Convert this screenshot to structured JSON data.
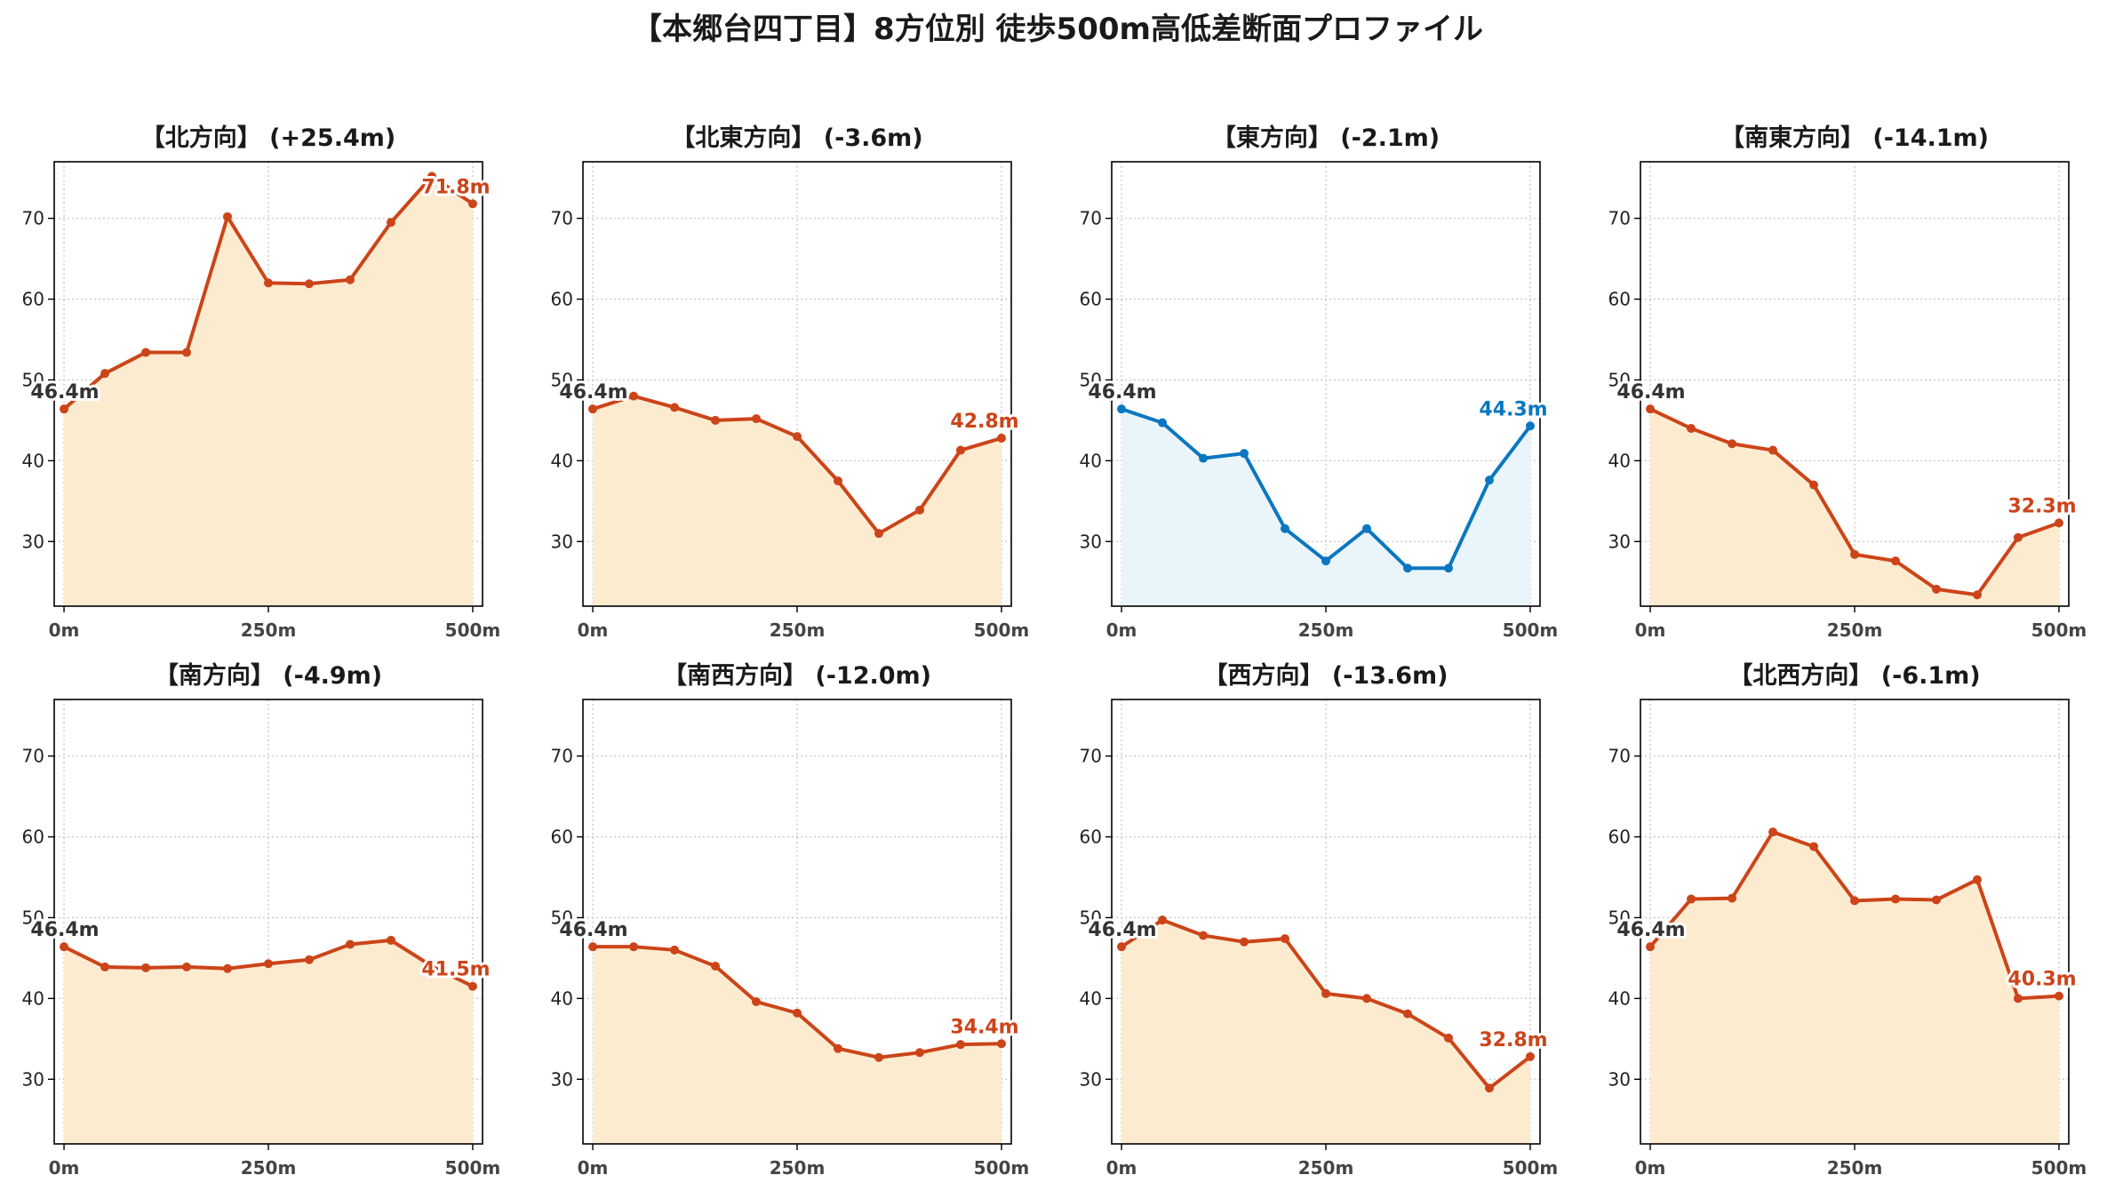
{
  "chart_data": {
    "title": "【本郷台四丁目】8方位別 徒歩500m高低差断面プロファイル",
    "type": "area",
    "x": [
      0,
      50,
      100,
      150,
      200,
      250,
      300,
      350,
      400,
      450,
      500
    ],
    "x_ticks": [
      "0m",
      "250m",
      "500m"
    ],
    "x_tick_values": [
      0,
      250,
      500
    ],
    "y_ticks": [
      30,
      40,
      50,
      60,
      70
    ],
    "xlim": [
      -12,
      512
    ],
    "ylim": [
      22,
      77
    ],
    "grid": true,
    "colors": {
      "up": "#cc4419",
      "up_fill": "#fdebd0",
      "down": "#0a77c0",
      "down_fill": "#eaf5fb",
      "start_label": "#333333"
    },
    "panels": [
      {
        "title": "【北方向】 (+25.4m)",
        "values": [
          46.4,
          50.8,
          53.4,
          53.4,
          70.2,
          62.0,
          61.9,
          62.4,
          69.5,
          75.2,
          71.8
        ],
        "start_label": "46.4m",
        "end_label": "71.8m",
        "style": "up"
      },
      {
        "title": "【北東方向】 (-3.6m)",
        "values": [
          46.4,
          48.0,
          46.6,
          45.0,
          45.2,
          43.0,
          37.5,
          31.0,
          33.9,
          41.3,
          42.8
        ],
        "start_label": "46.4m",
        "end_label": "42.8m",
        "style": "up"
      },
      {
        "title": "【東方向】 (-2.1m)",
        "values": [
          46.4,
          44.7,
          40.3,
          40.9,
          31.6,
          27.6,
          31.6,
          26.7,
          26.7,
          37.6,
          44.3
        ],
        "start_label": "46.4m",
        "end_label": "44.3m",
        "style": "down"
      },
      {
        "title": "【南東方向】 (-14.1m)",
        "values": [
          46.4,
          44.0,
          42.1,
          41.3,
          37.0,
          28.4,
          27.6,
          24.1,
          23.4,
          30.5,
          32.3
        ],
        "start_label": "46.4m",
        "end_label": "32.3m",
        "style": "up"
      },
      {
        "title": "【南方向】 (-4.9m)",
        "values": [
          46.4,
          43.9,
          43.8,
          43.9,
          43.7,
          44.3,
          44.8,
          46.7,
          47.2,
          44.0,
          41.5
        ],
        "start_label": "46.4m",
        "end_label": "41.5m",
        "style": "up"
      },
      {
        "title": "【南西方向】 (-12.0m)",
        "values": [
          46.4,
          46.4,
          46.0,
          44.0,
          39.6,
          38.2,
          33.8,
          32.7,
          33.3,
          34.3,
          34.4
        ],
        "start_label": "46.4m",
        "end_label": "34.4m",
        "style": "up"
      },
      {
        "title": "【西方向】 (-13.6m)",
        "values": [
          46.4,
          49.7,
          47.8,
          47.0,
          47.4,
          40.6,
          40.0,
          38.1,
          35.1,
          28.9,
          32.8
        ],
        "start_label": "46.4m",
        "end_label": "32.8m",
        "style": "up"
      },
      {
        "title": "【北西方向】 (-6.1m)",
        "values": [
          46.4,
          52.3,
          52.4,
          60.6,
          58.8,
          52.1,
          52.3,
          52.2,
          54.7,
          40.0,
          40.3
        ],
        "start_label": "46.4m",
        "end_label": "40.3m",
        "style": "up"
      }
    ]
  }
}
